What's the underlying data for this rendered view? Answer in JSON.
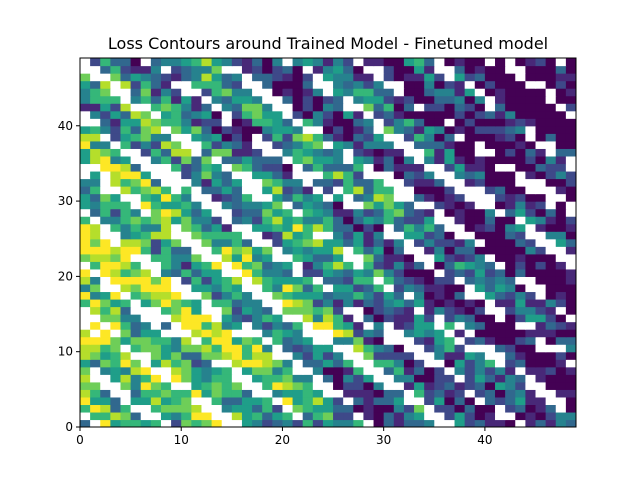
{
  "chart_data": {
    "type": "heatmap",
    "subtype": "filled-contour",
    "title": "Loss Contours around Trained Model - Finetuned model",
    "xlabel": "",
    "ylabel": "",
    "xlim": [
      0,
      49
    ],
    "ylim": [
      0,
      49
    ],
    "x_ticks": [
      0,
      10,
      20,
      30,
      40
    ],
    "y_ticks": [
      0,
      10,
      20,
      30,
      40
    ],
    "grid": false,
    "legend": "none",
    "colormap": "viridis",
    "grid_size": [
      50,
      50
    ],
    "nan_fill": "#ffffff",
    "structure": {
      "description_of_field": "noisy loss values on a 50x50 grid, high (yellow) toward the lower-left, low (dark purple) along diagonal bands toward the right; many undefined (white) cells arranged in diagonal streaks",
      "high_region_center": [
        3,
        15
      ],
      "low_band_direction": "upper-left to lower-right"
    }
  },
  "palette": {
    "viridis": [
      "#440154",
      "#482878",
      "#3e4989",
      "#31688e",
      "#26828e",
      "#1f9e89",
      "#35b779",
      "#6ece58",
      "#b5de2b",
      "#fde725"
    ],
    "axis": "#000000",
    "background": "#ffffff"
  }
}
